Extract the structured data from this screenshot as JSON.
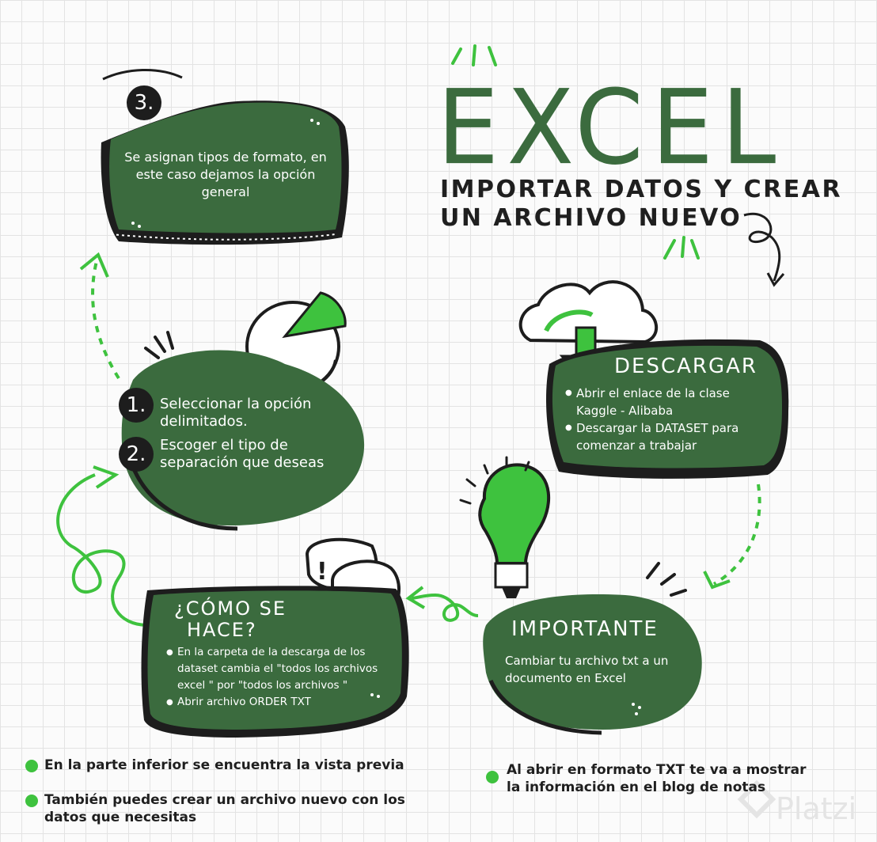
{
  "header": {
    "title": "EXCEL",
    "subtitle_line1": "IMPORTAR DATOS Y CREAR",
    "subtitle_line2": "UN ARCHIVO NUEVO"
  },
  "step3": {
    "number": "3.",
    "text": "Se asignan tipos de formato, en este caso dejamos la opción general"
  },
  "steps12": {
    "step1_number": "1.",
    "step1_text": "Seleccionar la opción delimitados.",
    "step2_number": "2.",
    "step2_text": "Escoger el tipo de separación que deseas"
  },
  "descargar": {
    "heading": "DESCARGAR",
    "items": [
      "Abrir el enlace de la clase Kaggle - Alibaba",
      "Descargar la DATASET para comenzar a trabajar"
    ]
  },
  "importante": {
    "heading": "IMPORTANTE",
    "text": "Cambiar tu archivo txt a un documento en Excel"
  },
  "como": {
    "heading_line1": "¿CÓMO SE",
    "heading_line2": "HACE?",
    "items": [
      "En la carpeta de la descarga de los dataset cambia el \"todos los archivos excel \" por \"todos los archivos \"",
      "Abrir archivo ORDER TXT"
    ]
  },
  "notes": {
    "left1": "En la parte inferior se encuentra la vista previa",
    "left2": "También puedes crear un archivo nuevo con los datos que necesitas",
    "right1": "Al abrir en formato TXT te va a mostrar la información en el blog de notas"
  },
  "watermark": "Platzi",
  "colors": {
    "dark_green": "#3b6b3e",
    "bright_green": "#3ec23e",
    "black": "#1d1d1d"
  }
}
